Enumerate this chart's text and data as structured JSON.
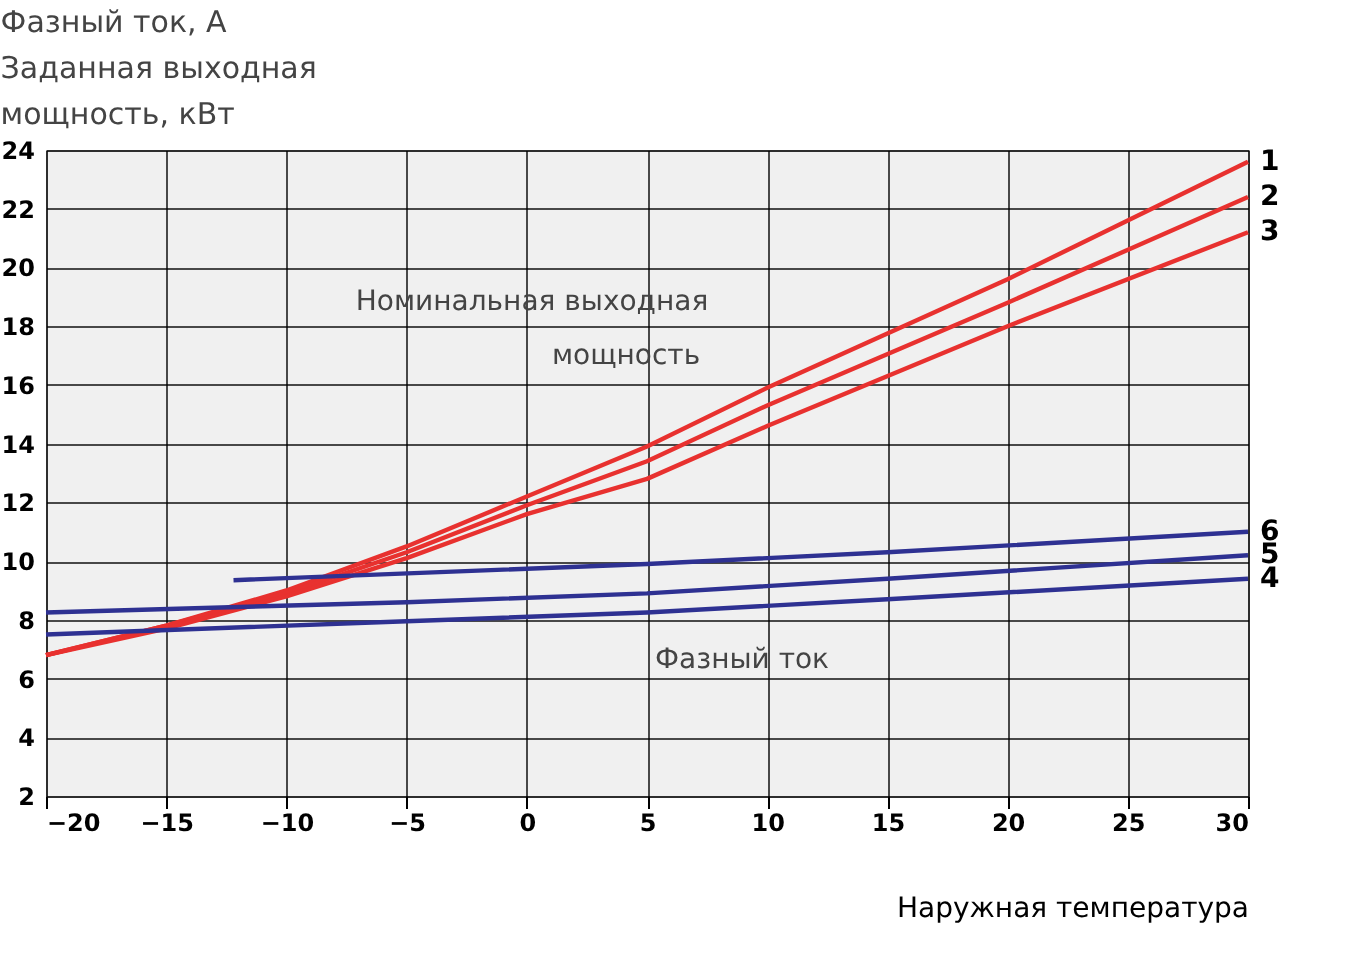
{
  "chart_data": {
    "type": "line",
    "ylabel": "Фазный ток, А\nЗаданная выходная\nмощность, кВт",
    "xlabel": "Наружная температура",
    "xlim": [
      -20,
      30
    ],
    "xticks": [
      -20,
      -15,
      -10,
      -5,
      0,
      5,
      10,
      15,
      20,
      25,
      30
    ],
    "ylim": [
      2,
      24
    ],
    "yticks": [
      2,
      4,
      6,
      8,
      10,
      12,
      14,
      16,
      18,
      20,
      22,
      24
    ],
    "grid": true,
    "legend": false,
    "marker": "none",
    "line_style": "solid",
    "annotations": [
      "Номинальная выходная\nмощность",
      "Фазный ток"
    ],
    "series": [
      {
        "name": "1",
        "color": "#e8312f",
        "x": [
          -20,
          -15,
          -10,
          -5,
          0,
          5,
          10,
          20,
          30
        ],
        "values": [
          6.8,
          7.8,
          9.0,
          10.5,
          12.2,
          13.9,
          15.9,
          19.6,
          23.6
        ]
      },
      {
        "name": "2",
        "color": "#e8312f",
        "x": [
          -20,
          -15,
          -10,
          -5,
          0,
          5,
          10,
          20,
          30
        ],
        "values": [
          6.8,
          7.8,
          8.9,
          10.3,
          11.9,
          13.4,
          15.3,
          18.8,
          22.4
        ]
      },
      {
        "name": "3",
        "color": "#e8312f",
        "x": [
          -20,
          -15,
          -10,
          -5,
          0,
          5,
          10,
          20,
          30
        ],
        "values": [
          6.8,
          7.7,
          8.8,
          10.1,
          11.6,
          12.8,
          14.6,
          18.0,
          21.2
        ]
      },
      {
        "name": "6",
        "color": "#2e3192",
        "x": [
          -12.2,
          5,
          15,
          30
        ],
        "values": [
          9.35,
          9.9,
          10.3,
          11.0
        ]
      },
      {
        "name": "5",
        "color": "#2e3192",
        "x": [
          -20,
          -5,
          5,
          15,
          30
        ],
        "values": [
          8.25,
          8.6,
          8.9,
          9.4,
          10.2
        ]
      },
      {
        "name": "4",
        "color": "#2e3192",
        "x": [
          -20,
          -5,
          5,
          15,
          30
        ],
        "values": [
          7.5,
          7.95,
          8.25,
          8.7,
          9.4
        ]
      }
    ]
  }
}
